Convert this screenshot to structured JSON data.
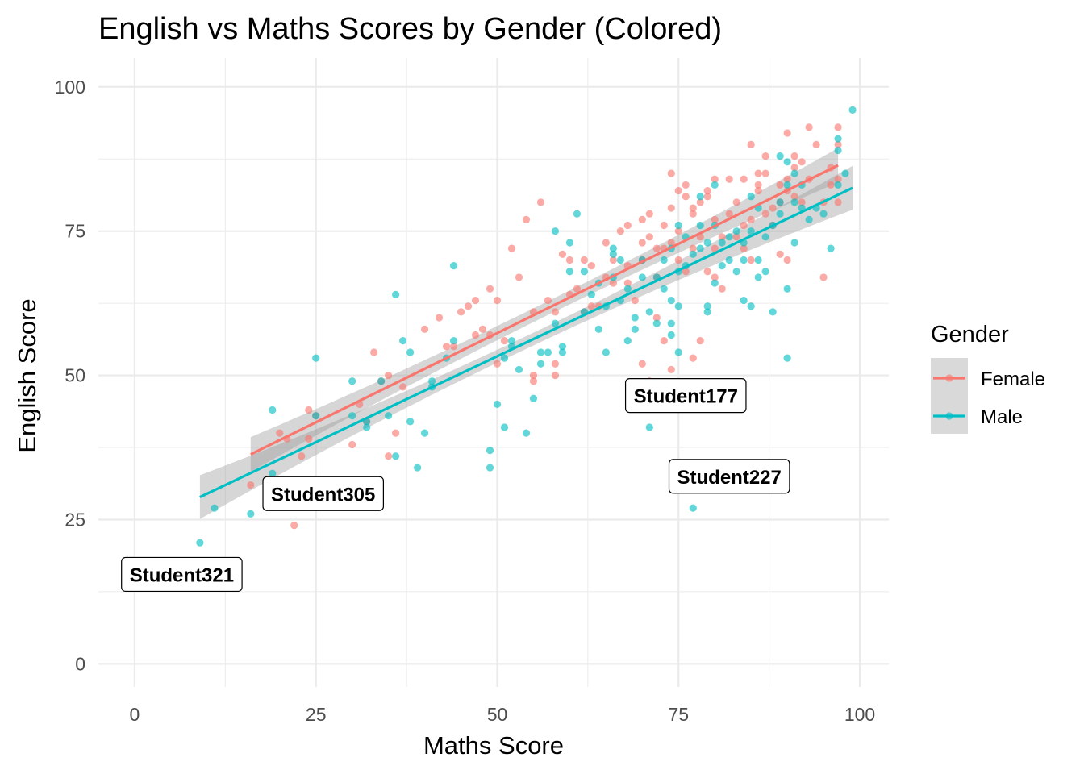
{
  "chart_data": {
    "type": "scatter",
    "title": "English vs Maths Scores by Gender (Colored)",
    "xlabel": "Maths Score",
    "ylabel": "English Score",
    "xlim": [
      -5,
      104
    ],
    "ylim": [
      -4,
      105
    ],
    "xticks": [
      0,
      25,
      50,
      75,
      100
    ],
    "yticks": [
      0,
      25,
      50,
      75,
      100
    ],
    "grid": true,
    "legend": {
      "title": "Gender",
      "position": "right",
      "entries": [
        "Female",
        "Male"
      ]
    },
    "series": [
      {
        "name": "Female",
        "color": "#F8766D",
        "trend": {
          "x": [
            16,
            97
          ],
          "y": [
            36.3,
            86.4
          ],
          "ci_halfwidth_ends": 3.0,
          "ci_halfwidth_mid": 1.2
        },
        "points": [
          [
            16,
            31
          ],
          [
            20,
            40
          ],
          [
            21,
            39
          ],
          [
            22,
            24
          ],
          [
            23,
            36
          ],
          [
            24,
            44
          ],
          [
            24,
            39
          ],
          [
            25,
            43
          ],
          [
            30,
            38
          ],
          [
            31,
            45
          ],
          [
            32,
            42
          ],
          [
            33,
            54
          ],
          [
            34,
            49
          ],
          [
            35,
            36
          ],
          [
            35,
            50
          ],
          [
            36,
            40
          ],
          [
            37,
            48
          ],
          [
            40,
            58
          ],
          [
            42,
            60
          ],
          [
            43,
            55
          ],
          [
            44,
            55
          ],
          [
            45,
            61
          ],
          [
            46,
            62
          ],
          [
            47,
            63
          ],
          [
            47,
            57
          ],
          [
            48,
            58
          ],
          [
            49,
            65
          ],
          [
            49,
            57
          ],
          [
            50,
            52
          ],
          [
            50,
            63
          ],
          [
            51,
            56
          ],
          [
            52,
            72
          ],
          [
            53,
            67
          ],
          [
            54,
            77
          ],
          [
            55,
            61
          ],
          [
            55,
            49
          ],
          [
            55,
            50
          ],
          [
            56,
            80
          ],
          [
            57,
            63
          ],
          [
            58,
            50
          ],
          [
            58,
            52
          ],
          [
            58,
            61
          ],
          [
            59,
            71
          ],
          [
            60,
            70
          ],
          [
            60,
            64
          ],
          [
            61,
            65
          ],
          [
            62,
            61
          ],
          [
            62,
            70
          ],
          [
            63,
            62
          ],
          [
            63,
            69
          ],
          [
            64,
            62
          ],
          [
            65,
            67
          ],
          [
            65,
            73
          ],
          [
            66,
            70
          ],
          [
            66,
            66
          ],
          [
            67,
            75
          ],
          [
            68,
            69
          ],
          [
            68,
            76
          ],
          [
            68,
            66
          ],
          [
            69,
            63
          ],
          [
            70,
            70
          ],
          [
            70,
            73
          ],
          [
            70,
            77
          ],
          [
            70,
            52
          ],
          [
            71,
            78
          ],
          [
            71,
            74
          ],
          [
            71,
            49
          ],
          [
            72,
            72
          ],
          [
            72,
            60
          ],
          [
            72,
            67
          ],
          [
            73,
            72
          ],
          [
            73,
            76
          ],
          [
            73,
            56
          ],
          [
            74,
            51
          ],
          [
            74,
            73
          ],
          [
            74,
            79
          ],
          [
            74,
            85
          ],
          [
            75,
            70
          ],
          [
            75,
            75
          ],
          [
            75,
            82
          ],
          [
            76,
            81
          ],
          [
            76,
            68
          ],
          [
            76,
            83
          ],
          [
            77,
            78
          ],
          [
            77,
            53
          ],
          [
            77,
            72
          ],
          [
            77,
            79
          ],
          [
            78,
            80
          ],
          [
            78,
            74
          ],
          [
            78,
            56
          ],
          [
            79,
            68
          ],
          [
            79,
            82
          ],
          [
            79,
            81
          ],
          [
            80,
            77
          ],
          [
            80,
            72
          ],
          [
            80,
            84
          ],
          [
            80,
            67
          ],
          [
            81,
            74
          ],
          [
            81,
            65
          ],
          [
            82,
            78
          ],
          [
            82,
            84
          ],
          [
            83,
            80
          ],
          [
            83,
            74
          ],
          [
            84,
            72
          ],
          [
            84,
            84
          ],
          [
            84,
            76
          ],
          [
            85,
            70
          ],
          [
            85,
            77
          ],
          [
            85,
            90
          ],
          [
            86,
            85
          ],
          [
            86,
            83
          ],
          [
            86,
            82
          ],
          [
            87,
            78
          ],
          [
            87,
            88
          ],
          [
            87,
            85
          ],
          [
            88,
            79
          ],
          [
            88,
            76
          ],
          [
            89,
            80
          ],
          [
            89,
            71
          ],
          [
            89,
            83
          ],
          [
            90,
            92
          ],
          [
            90,
            84
          ],
          [
            90,
            70
          ],
          [
            90,
            82
          ],
          [
            91,
            88
          ],
          [
            91,
            86
          ],
          [
            91,
            81
          ],
          [
            92,
            87
          ],
          [
            92,
            80
          ],
          [
            93,
            93
          ],
          [
            93,
            84
          ],
          [
            94,
            90
          ],
          [
            95,
            80
          ],
          [
            95,
            67
          ],
          [
            96,
            86
          ],
          [
            96,
            83
          ],
          [
            97,
            93
          ],
          [
            97,
            84
          ],
          [
            97,
            80
          ],
          [
            97,
            90
          ]
        ]
      },
      {
        "name": "Male",
        "color": "#00BFC4",
        "trend": {
          "x": [
            9,
            99
          ],
          "y": [
            28.9,
            82.5
          ],
          "ci_halfwidth_ends": 3.8,
          "ci_halfwidth_mid": 1.1
        },
        "points": [
          [
            9,
            21
          ],
          [
            11,
            27
          ],
          [
            16,
            26
          ],
          [
            19,
            33
          ],
          [
            19,
            44
          ],
          [
            25,
            43
          ],
          [
            25,
            53
          ],
          [
            30,
            49
          ],
          [
            30,
            43
          ],
          [
            32,
            42
          ],
          [
            32,
            41
          ],
          [
            34,
            49
          ],
          [
            35,
            43
          ],
          [
            36,
            64
          ],
          [
            36,
            36
          ],
          [
            37,
            56
          ],
          [
            38,
            54
          ],
          [
            38,
            42
          ],
          [
            39,
            34
          ],
          [
            40,
            40
          ],
          [
            41,
            49
          ],
          [
            41,
            48
          ],
          [
            43,
            53
          ],
          [
            44,
            69
          ],
          [
            44,
            56
          ],
          [
            49,
            37
          ],
          [
            49,
            34
          ],
          [
            50,
            45
          ],
          [
            51,
            41
          ],
          [
            51,
            53
          ],
          [
            52,
            55
          ],
          [
            52,
            56
          ],
          [
            53,
            51
          ],
          [
            54,
            40
          ],
          [
            55,
            46
          ],
          [
            56,
            54
          ],
          [
            56,
            52
          ],
          [
            57,
            54
          ],
          [
            58,
            75
          ],
          [
            58,
            59
          ],
          [
            59,
            55
          ],
          [
            59,
            54
          ],
          [
            60,
            73
          ],
          [
            60,
            68
          ],
          [
            61,
            78
          ],
          [
            62,
            61
          ],
          [
            62,
            68
          ],
          [
            63,
            64
          ],
          [
            64,
            58
          ],
          [
            64,
            66
          ],
          [
            65,
            62
          ],
          [
            65,
            54
          ],
          [
            66,
            71
          ],
          [
            66,
            72
          ],
          [
            66,
            67
          ],
          [
            67,
            70
          ],
          [
            67,
            63
          ],
          [
            68,
            65
          ],
          [
            68,
            56
          ],
          [
            69,
            58
          ],
          [
            69,
            60
          ],
          [
            70,
            70
          ],
          [
            70,
            67
          ],
          [
            71,
            41
          ],
          [
            71,
            61
          ],
          [
            72,
            59
          ],
          [
            72,
            67
          ],
          [
            73,
            65
          ],
          [
            73,
            70
          ],
          [
            74,
            72
          ],
          [
            74,
            63
          ],
          [
            74,
            59
          ],
          [
            74,
            57
          ],
          [
            75,
            68
          ],
          [
            75,
            54
          ],
          [
            75,
            76
          ],
          [
            75,
            62
          ],
          [
            76,
            69
          ],
          [
            76,
            74
          ],
          [
            77,
            27
          ],
          [
            77,
            71
          ],
          [
            78,
            72
          ],
          [
            78,
            76
          ],
          [
            78,
            81
          ],
          [
            79,
            61
          ],
          [
            79,
            73
          ],
          [
            79,
            62
          ],
          [
            80,
            83
          ],
          [
            80,
            76
          ],
          [
            80,
            66
          ],
          [
            81,
            69
          ],
          [
            81,
            73
          ],
          [
            82,
            74
          ],
          [
            82,
            70
          ],
          [
            83,
            75
          ],
          [
            83,
            68
          ],
          [
            84,
            73
          ],
          [
            84,
            63
          ],
          [
            84,
            70
          ],
          [
            85,
            62
          ],
          [
            85,
            75
          ],
          [
            85,
            81
          ],
          [
            86,
            79
          ],
          [
            86,
            70
          ],
          [
            86,
            67
          ],
          [
            87,
            68
          ],
          [
            87,
            74
          ],
          [
            88,
            76
          ],
          [
            88,
            61
          ],
          [
            89,
            80
          ],
          [
            89,
            88
          ],
          [
            89,
            78
          ],
          [
            90,
            87
          ],
          [
            90,
            53
          ],
          [
            90,
            65
          ],
          [
            90,
            83
          ],
          [
            91,
            85
          ],
          [
            91,
            73
          ],
          [
            91,
            80
          ],
          [
            92,
            79
          ],
          [
            92,
            83
          ],
          [
            93,
            77
          ],
          [
            94,
            79
          ],
          [
            95,
            78
          ],
          [
            96,
            72
          ],
          [
            97,
            89
          ],
          [
            97,
            91
          ],
          [
            97,
            83
          ],
          [
            98,
            85
          ],
          [
            99,
            96
          ]
        ]
      }
    ],
    "annotations": [
      {
        "text": "Student177",
        "x": 76,
        "y": 46.5
      },
      {
        "text": "Student227",
        "x": 82,
        "y": 32.5
      },
      {
        "text": "Student305",
        "x": 26,
        "y": 29.5
      },
      {
        "text": "Student321",
        "x": 6.5,
        "y": 15.5
      }
    ]
  }
}
